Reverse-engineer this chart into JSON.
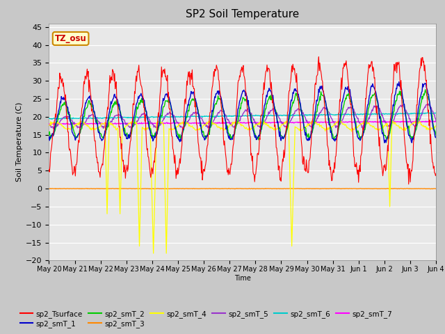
{
  "title": "SP2 Soil Temperature",
  "ylabel": "Soil Temperature (C)",
  "xlabel": "Time",
  "ylim": [
    -20,
    46
  ],
  "yticks": [
    -20,
    -15,
    -10,
    -5,
    0,
    5,
    10,
    15,
    20,
    25,
    30,
    35,
    40,
    45
  ],
  "series_colors": {
    "sp2_Tsurface": "#ff0000",
    "sp2_smT_1": "#0000cc",
    "sp2_smT_2": "#00cc00",
    "sp2_smT_3": "#ff8800",
    "sp2_smT_4": "#ffff00",
    "sp2_smT_5": "#9933cc",
    "sp2_smT_6": "#00cccc",
    "sp2_smT_7": "#ff00ff"
  },
  "tz_label": "TZ_osu",
  "tz_bg": "#ffffcc",
  "tz_border": "#cc8800",
  "n_days": 15,
  "points_per_day": 48,
  "day_labels": [
    "May 20",
    "May 21",
    "May 22",
    "May 23",
    "May 24",
    "May 25",
    "May 26",
    "May 27",
    "May 28",
    "May 29",
    "May 30",
    "May 31",
    "Jun 1",
    "Jun 2",
    "Jun 3",
    "Jun 4"
  ],
  "fig_facecolor": "#c8c8c8",
  "ax_facecolor": "#e8e8e8"
}
